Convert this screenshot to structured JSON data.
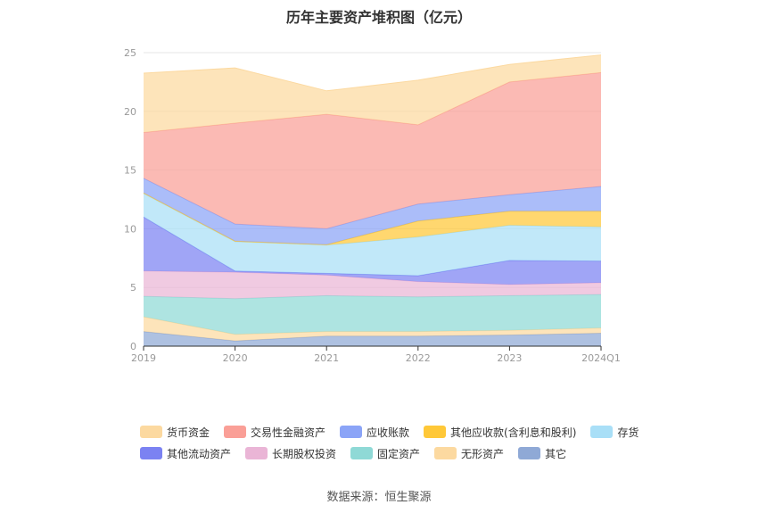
{
  "chart_data": {
    "type": "area",
    "stacked": true,
    "title": "历年主要资产堆积图（亿元）",
    "categories": [
      "2019",
      "2020",
      "2021",
      "2022",
      "2023",
      "2024Q1"
    ],
    "ylim": [
      0,
      25
    ],
    "yticks": [
      "0",
      "5",
      "10",
      "15",
      "20",
      "25"
    ],
    "grid": true,
    "legend_position": "bottom",
    "series": [
      {
        "name": "其它",
        "color": "#8fa9d6",
        "values": [
          1.25,
          0.45,
          0.85,
          0.85,
          0.95,
          1.1
        ]
      },
      {
        "name": "无形资产",
        "color": "#fcd9a0",
        "values": [
          1.25,
          0.55,
          0.4,
          0.4,
          0.4,
          0.45
        ]
      },
      {
        "name": "固定资产",
        "color": "#8fd9d6",
        "values": [
          1.75,
          3.05,
          3.05,
          2.95,
          2.95,
          2.85
        ]
      },
      {
        "name": "长期股权投资",
        "color": "#eab5d6",
        "values": [
          2.15,
          2.25,
          1.75,
          1.3,
          0.95,
          1.0
        ]
      },
      {
        "name": "其他流动资产",
        "color": "#7b82f2",
        "values": [
          4.6,
          0.1,
          0.15,
          0.5,
          2.05,
          1.85
        ]
      },
      {
        "name": "存货",
        "color": "#a9dff7",
        "values": [
          2.0,
          2.5,
          2.4,
          3.3,
          3.0,
          2.9
        ]
      },
      {
        "name": "其他应收款(含利息和股利)",
        "color": "#ffc838",
        "values": [
          0.05,
          0.05,
          0.05,
          1.35,
          1.2,
          1.35
        ]
      },
      {
        "name": "应收账款",
        "color": "#8ba4f7",
        "values": [
          1.25,
          1.45,
          1.35,
          1.45,
          1.4,
          2.1
        ]
      },
      {
        "name": "交易性金融资产",
        "color": "#fa9f97",
        "values": [
          3.9,
          8.6,
          9.75,
          6.75,
          9.6,
          9.7
        ]
      },
      {
        "name": "货币资金",
        "color": "#fcd9a0",
        "values": [
          5.05,
          4.7,
          2.0,
          3.8,
          1.5,
          1.5
        ]
      }
    ],
    "legend_order": [
      "货币资金",
      "交易性金融资产",
      "应收账款",
      "其他应收款(含利息和股利)",
      "存货",
      "其他流动资产",
      "长期股权投资",
      "固定资产",
      "无形资产",
      "其它"
    ]
  },
  "source_text": "数据来源：恒生聚源"
}
